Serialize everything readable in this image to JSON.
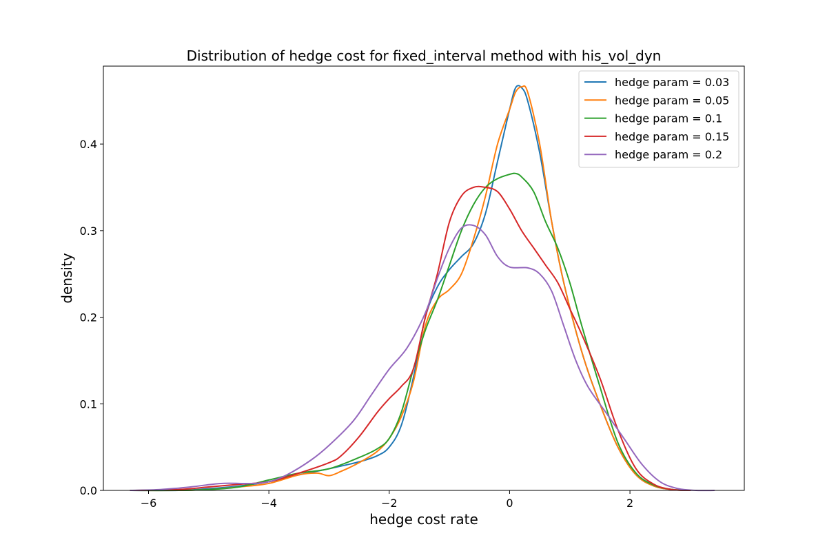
{
  "chart_data": {
    "type": "line",
    "title": "Distribution of hedge cost for fixed_interval method with his_vol_dyn",
    "xlabel": "hedge cost rate",
    "ylabel": "density",
    "xlim": [
      -6.75,
      3.9
    ],
    "ylim": [
      0,
      0.49
    ],
    "xticks": [
      -6,
      -4,
      -2,
      0,
      2
    ],
    "xtick_labels": [
      "−6",
      "−4",
      "−2",
      "0",
      "2"
    ],
    "yticks": [
      0,
      0.1,
      0.2,
      0.3,
      0.4
    ],
    "ytick_labels": [
      "0.0",
      "0.1",
      "0.2",
      "0.3",
      "0.4"
    ],
    "grid": false,
    "legend_position": "top-right",
    "series": [
      {
        "name": "hedge param = 0.03",
        "color": "#1f77b4",
        "x": [
          -6.3,
          -5.5,
          -5.0,
          -4.5,
          -4.0,
          -3.5,
          -3.0,
          -2.5,
          -2.2,
          -2.0,
          -1.8,
          -1.6,
          -1.4,
          -1.2,
          -1.0,
          -0.8,
          -0.6,
          -0.4,
          -0.2,
          0.0,
          0.1,
          0.2,
          0.3,
          0.5,
          0.7,
          0.9,
          1.2,
          1.5,
          1.8,
          2.1,
          2.4,
          2.7,
          3.0
        ],
        "y": [
          0.0,
          0.0,
          0.002,
          0.005,
          0.01,
          0.018,
          0.025,
          0.033,
          0.04,
          0.05,
          0.075,
          0.13,
          0.2,
          0.235,
          0.255,
          0.27,
          0.285,
          0.32,
          0.38,
          0.44,
          0.465,
          0.465,
          0.45,
          0.39,
          0.31,
          0.24,
          0.16,
          0.1,
          0.05,
          0.018,
          0.005,
          0.001,
          0.0
        ]
      },
      {
        "name": "hedge param = 0.05",
        "color": "#ff7f0e",
        "x": [
          -6.3,
          -5.5,
          -5.0,
          -4.5,
          -4.0,
          -3.5,
          -3.2,
          -3.0,
          -2.8,
          -2.5,
          -2.2,
          -2.0,
          -1.8,
          -1.6,
          -1.4,
          -1.2,
          -1.0,
          -0.8,
          -0.6,
          -0.4,
          -0.2,
          0.0,
          0.1,
          0.2,
          0.3,
          0.5,
          0.7,
          0.9,
          1.2,
          1.5,
          1.8,
          2.1,
          2.4,
          2.7,
          3.0
        ],
        "y": [
          0.0,
          0.0,
          0.001,
          0.004,
          0.008,
          0.018,
          0.02,
          0.017,
          0.022,
          0.032,
          0.045,
          0.06,
          0.085,
          0.125,
          0.19,
          0.22,
          0.232,
          0.25,
          0.29,
          0.34,
          0.4,
          0.44,
          0.46,
          0.466,
          0.46,
          0.4,
          0.31,
          0.24,
          0.16,
          0.1,
          0.05,
          0.018,
          0.005,
          0.001,
          0.0
        ]
      },
      {
        "name": "hedge param = 0.1",
        "color": "#2ca02c",
        "x": [
          -6.3,
          -5.5,
          -5.0,
          -4.5,
          -4.0,
          -3.5,
          -3.0,
          -2.5,
          -2.2,
          -2.0,
          -1.8,
          -1.6,
          -1.4,
          -1.2,
          -1.0,
          -0.8,
          -0.6,
          -0.4,
          -0.2,
          0.0,
          0.1,
          0.2,
          0.4,
          0.6,
          0.8,
          1.0,
          1.2,
          1.5,
          1.8,
          2.1,
          2.4,
          2.7,
          3.0
        ],
        "y": [
          0.0,
          0.0,
          0.001,
          0.004,
          0.012,
          0.02,
          0.025,
          0.038,
          0.048,
          0.06,
          0.09,
          0.14,
          0.185,
          0.22,
          0.26,
          0.3,
          0.33,
          0.35,
          0.36,
          0.365,
          0.366,
          0.362,
          0.345,
          0.31,
          0.28,
          0.24,
          0.19,
          0.12,
          0.055,
          0.02,
          0.006,
          0.001,
          0.0
        ]
      },
      {
        "name": "hedge param = 0.15",
        "color": "#d62728",
        "x": [
          -6.3,
          -5.5,
          -5.0,
          -4.5,
          -4.0,
          -3.5,
          -3.0,
          -2.8,
          -2.5,
          -2.2,
          -2.0,
          -1.8,
          -1.6,
          -1.4,
          -1.2,
          -1.0,
          -0.8,
          -0.6,
          -0.4,
          -0.2,
          0.0,
          0.2,
          0.4,
          0.6,
          0.8,
          1.0,
          1.2,
          1.5,
          1.8,
          2.1,
          2.4,
          2.7,
          3.0
        ],
        "y": [
          0.0,
          0.001,
          0.004,
          0.007,
          0.01,
          0.02,
          0.032,
          0.04,
          0.062,
          0.09,
          0.106,
          0.12,
          0.14,
          0.2,
          0.25,
          0.31,
          0.34,
          0.35,
          0.35,
          0.345,
          0.325,
          0.3,
          0.28,
          0.26,
          0.24,
          0.21,
          0.18,
          0.13,
          0.07,
          0.025,
          0.007,
          0.001,
          0.0
        ]
      },
      {
        "name": "hedge param = 0.2",
        "color": "#9467bd",
        "x": [
          -6.3,
          -5.8,
          -5.3,
          -4.8,
          -4.3,
          -4.0,
          -3.7,
          -3.3,
          -3.0,
          -2.6,
          -2.3,
          -2.0,
          -1.7,
          -1.4,
          -1.2,
          -1.0,
          -0.8,
          -0.6,
          -0.4,
          -0.2,
          0.0,
          0.3,
          0.5,
          0.7,
          0.9,
          1.1,
          1.3,
          1.6,
          1.9,
          2.2,
          2.5,
          2.8,
          3.1,
          3.4
        ],
        "y": [
          0.0,
          0.001,
          0.004,
          0.008,
          0.008,
          0.01,
          0.018,
          0.035,
          0.052,
          0.08,
          0.11,
          0.14,
          0.165,
          0.205,
          0.245,
          0.28,
          0.303,
          0.306,
          0.295,
          0.27,
          0.258,
          0.257,
          0.25,
          0.23,
          0.19,
          0.15,
          0.12,
          0.09,
          0.06,
          0.03,
          0.01,
          0.002,
          0.0,
          0.0
        ]
      }
    ]
  }
}
